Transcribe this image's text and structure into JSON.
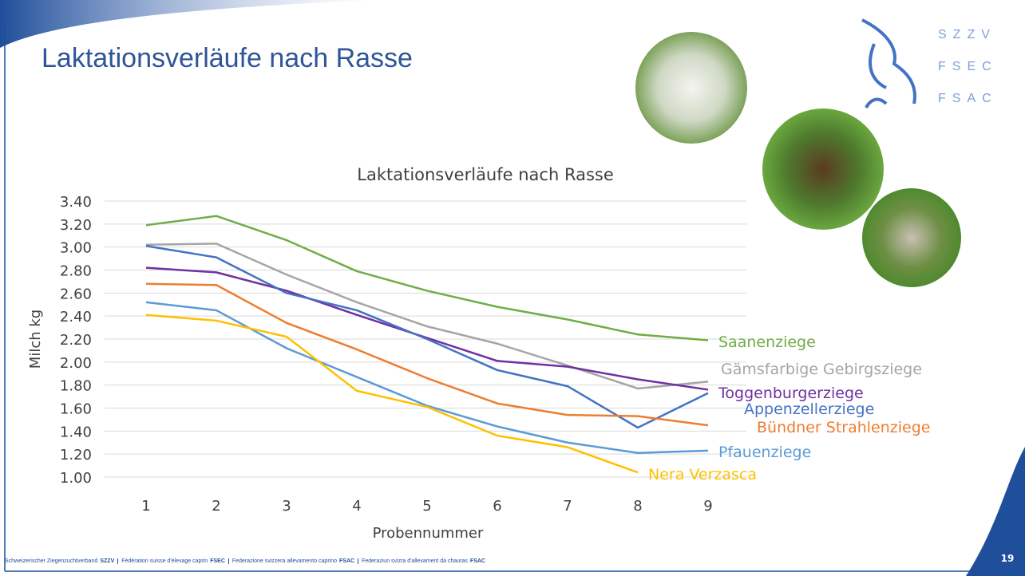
{
  "slide_title": "Laktationsverläufe nach Rasse",
  "logo": [
    "SZZV",
    "FSEC",
    "FSAC"
  ],
  "footer": [
    {
      "name": "Schweizerischer Ziegenzuchtverband",
      "abbr": "SZZV"
    },
    {
      "name": "Fédération suisse d'élevage caprin",
      "abbr": "FSEC"
    },
    {
      "name": "Federazione svizzera allevamento caprino",
      "abbr": "FSAC"
    },
    {
      "name": "Federaziun svizra d'allevament da chauras",
      "abbr": "FSAC"
    }
  ],
  "page_number": "19",
  "chart_data": {
    "type": "line",
    "title": "Laktationsverläufe nach Rasse",
    "x_label": "Probennummer",
    "y_label": "Milch kg",
    "categories": [
      "1",
      "2",
      "3",
      "4",
      "5",
      "6",
      "7",
      "8",
      "9"
    ],
    "ylim": [
      1.0,
      3.4
    ],
    "yticks": [
      {
        "value": 1.0,
        "label": "1.00"
      },
      {
        "value": 1.2,
        "label": "1.20"
      },
      {
        "value": 1.4,
        "label": "1.40"
      },
      {
        "value": 1.6,
        "label": "1.60"
      },
      {
        "value": 1.8,
        "label": "1.80"
      },
      {
        "value": 2.0,
        "label": "2.00"
      },
      {
        "value": 2.2,
        "label": "2.20"
      },
      {
        "value": 2.4,
        "label": "2.40"
      },
      {
        "value": 2.6,
        "label": "2.60"
      },
      {
        "value": 2.8,
        "label": "2.80"
      },
      {
        "value": 3.0,
        "label": "3.00"
      },
      {
        "value": 3.2,
        "label": "3.20"
      },
      {
        "value": 3.4,
        "label": "3.40"
      }
    ],
    "grid": true,
    "series": [
      {
        "name": "Saanenziege",
        "color": "#70ad47",
        "values": [
          3.19,
          3.27,
          3.06,
          2.79,
          2.62,
          2.48,
          2.37,
          2.24,
          2.19
        ]
      },
      {
        "name": "Gämsfarbige Gebirgsziege",
        "color": "#a5a5a5",
        "values": [
          3.02,
          3.03,
          2.76,
          2.52,
          2.31,
          2.16,
          1.97,
          1.77,
          1.83
        ]
      },
      {
        "name": "Toggenburgerziege",
        "color": "#7030a0",
        "values": [
          2.82,
          2.78,
          2.62,
          2.41,
          2.21,
          2.01,
          1.96,
          1.85,
          1.76
        ]
      },
      {
        "name": "Appenzellerziege",
        "color": "#4472c4",
        "values": [
          3.01,
          2.91,
          2.6,
          2.45,
          2.2,
          1.93,
          1.79,
          1.43,
          1.73
        ]
      },
      {
        "name": "Bündner Strahlenziege",
        "color": "#ed7d31",
        "values": [
          2.68,
          2.67,
          2.34,
          2.11,
          1.86,
          1.64,
          1.54,
          1.53,
          1.45
        ]
      },
      {
        "name": "Pfauenziege",
        "color": "#5b9bd5",
        "values": [
          2.52,
          2.45,
          2.12,
          1.87,
          1.62,
          1.44,
          1.3,
          1.21,
          1.23
        ]
      },
      {
        "name": "Nera Verzasca",
        "color": "#ffc000",
        "values": [
          2.41,
          2.36,
          2.22,
          1.75,
          1.61,
          1.36,
          1.26,
          1.04,
          null
        ]
      }
    ]
  }
}
